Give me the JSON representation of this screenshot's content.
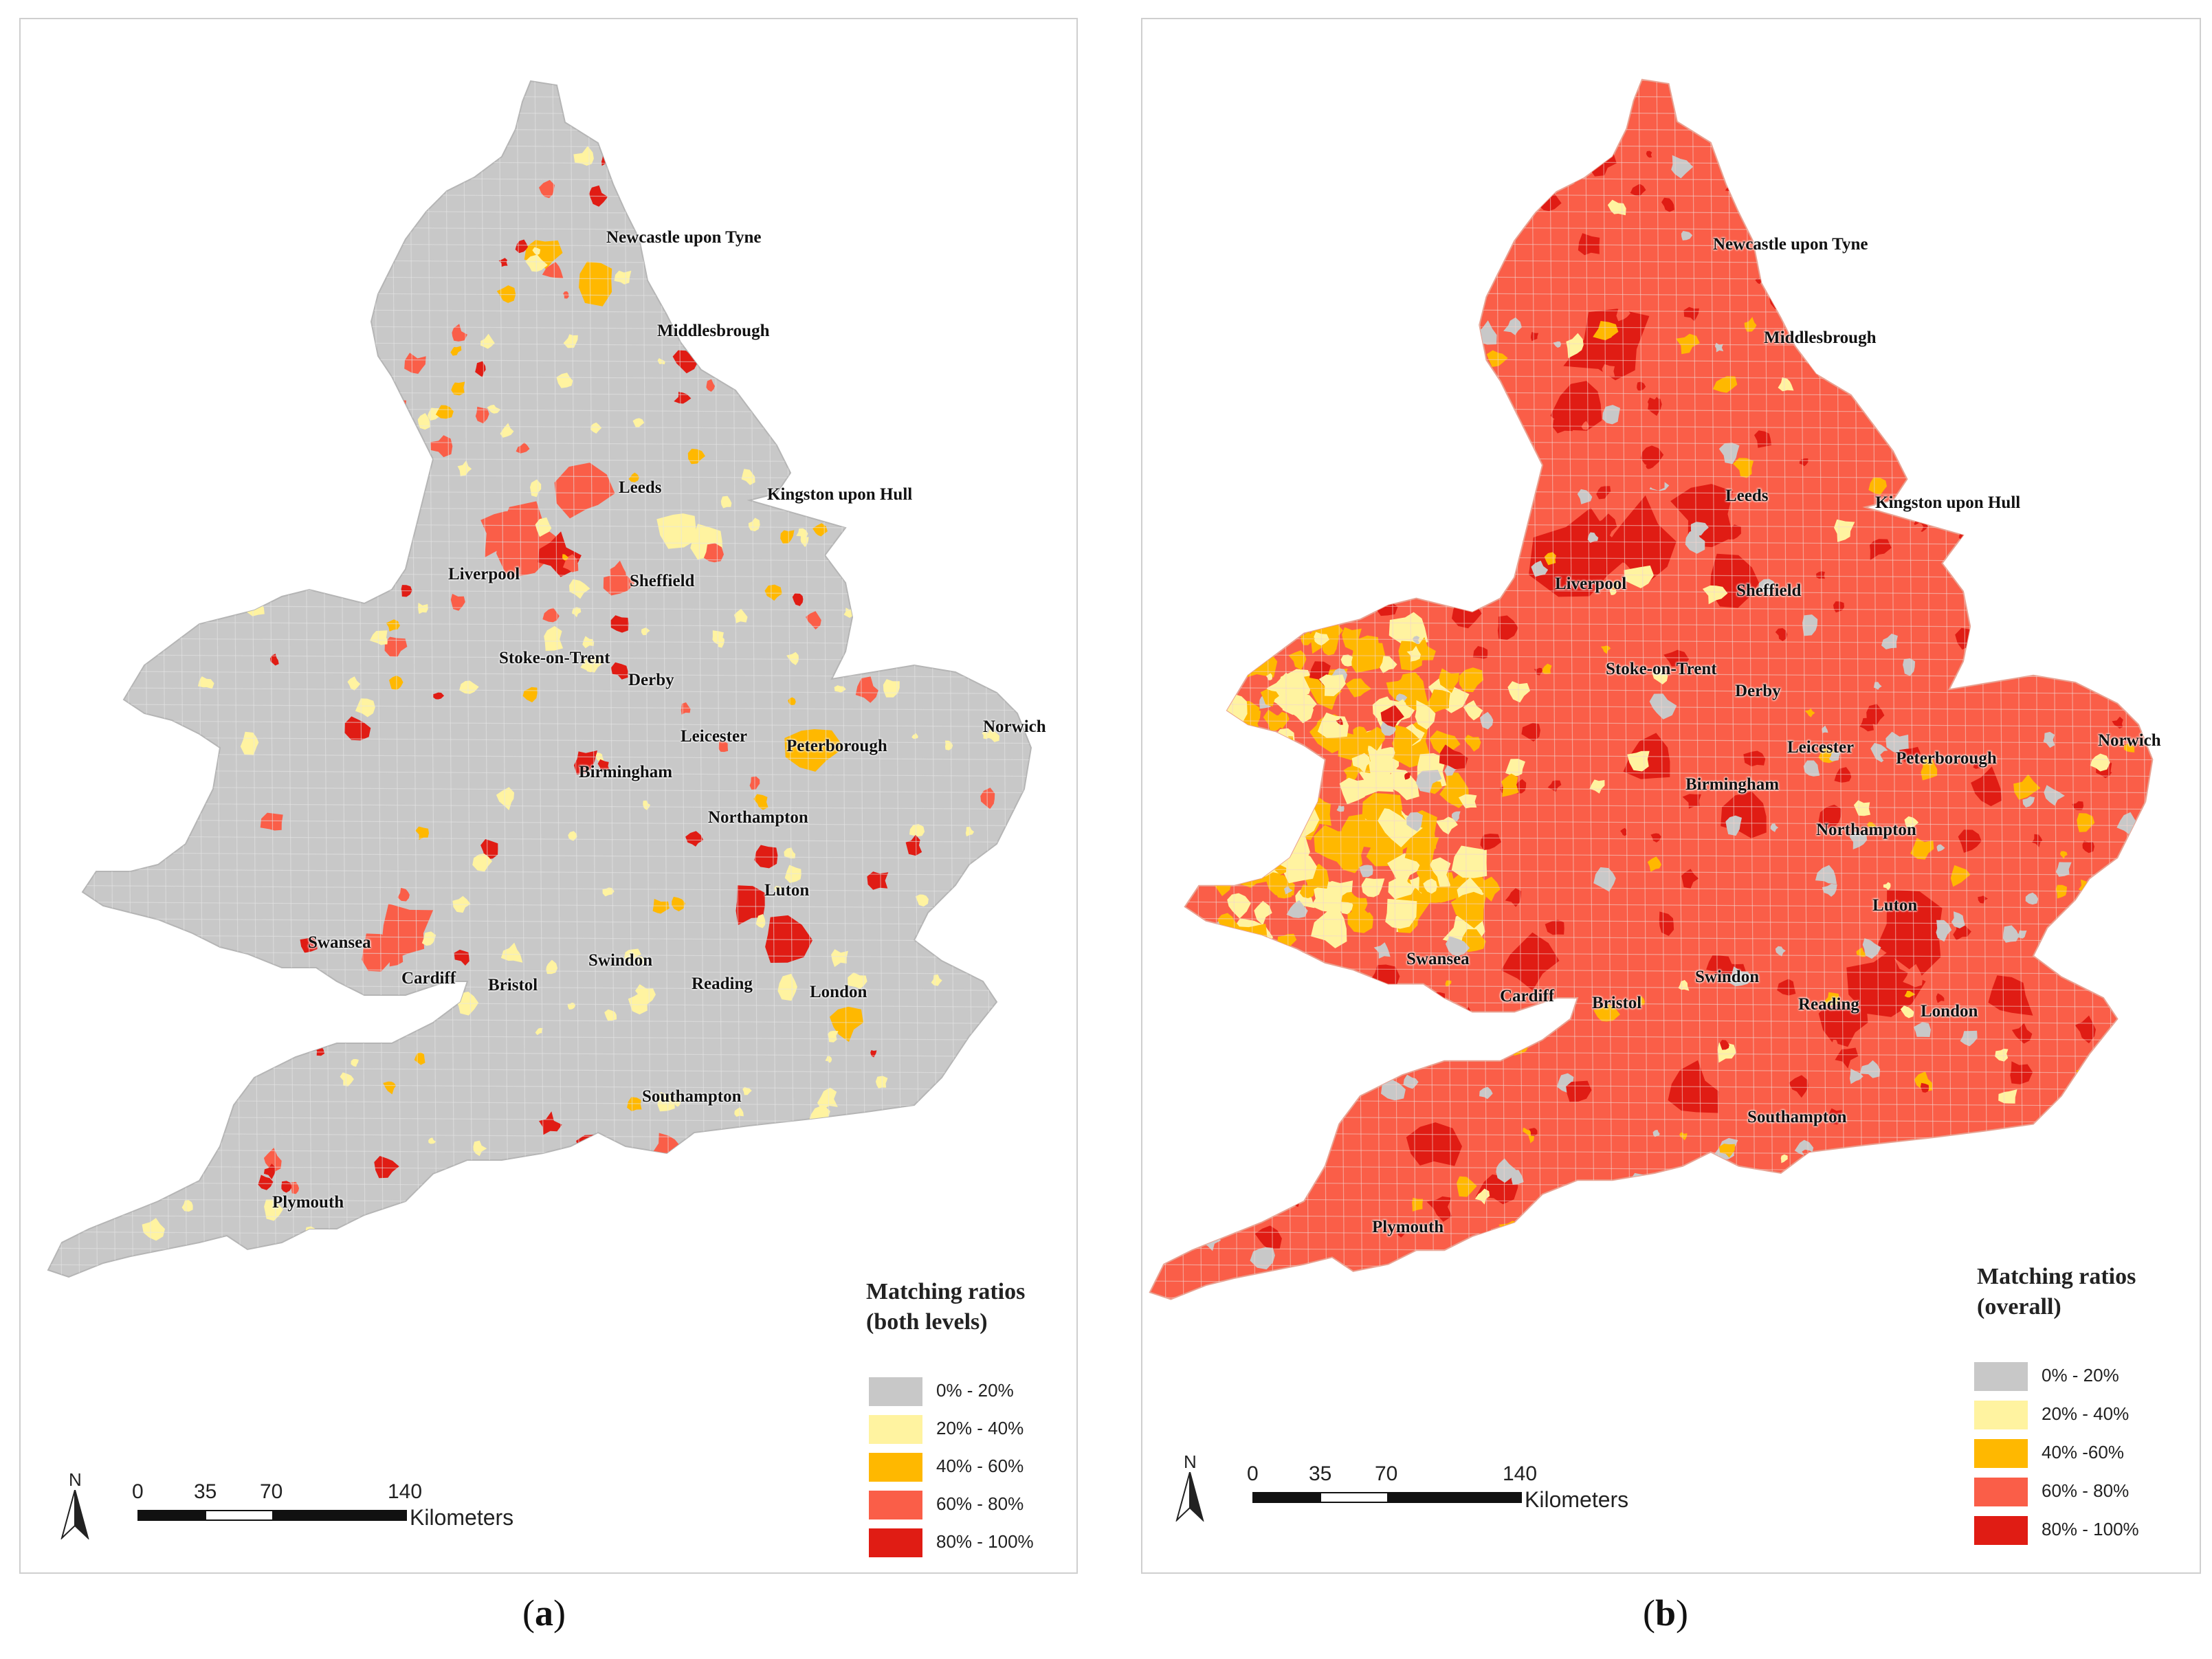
{
  "panels": [
    {
      "id": "a",
      "caption_open": "(",
      "caption_letter": "a",
      "caption_close": ")",
      "legend_title_line1": "Matching ratios",
      "legend_title_line2": "(both levels)",
      "legend": [
        {
          "label": "0% - 20%",
          "color": "#c8c8c8"
        },
        {
          "label": "20% - 40%",
          "color": "#fff3a0"
        },
        {
          "label": "40% - 60%",
          "color": "#ffb800"
        },
        {
          "label": "60% - 80%",
          "color": "#fa5e48"
        },
        {
          "label": "80% - 100%",
          "color": "#e01c14"
        }
      ],
      "scale_ticks": [
        "0",
        "35",
        "70",
        "140"
      ],
      "scale_unit": "Kilometers",
      "north_label": "N",
      "dominant_class": "0% - 20%",
      "cities": [
        {
          "name": "Newcastle upon Tyne"
        },
        {
          "name": "Middlesbrough"
        },
        {
          "name": "Leeds"
        },
        {
          "name": "Kingston upon Hull"
        },
        {
          "name": "Liverpool"
        },
        {
          "name": "Sheffield"
        },
        {
          "name": "Stoke-on-Trent"
        },
        {
          "name": "Derby"
        },
        {
          "name": "Leicester"
        },
        {
          "name": "Peterborough"
        },
        {
          "name": "Norwich"
        },
        {
          "name": "Birmingham"
        },
        {
          "name": "Northampton"
        },
        {
          "name": "Luton"
        },
        {
          "name": "Swansea"
        },
        {
          "name": "Cardiff"
        },
        {
          "name": "Bristol"
        },
        {
          "name": "Swindon"
        },
        {
          "name": "Reading"
        },
        {
          "name": "London"
        },
        {
          "name": "Southampton"
        },
        {
          "name": "Plymouth"
        }
      ]
    },
    {
      "id": "b",
      "caption_open": "(",
      "caption_letter": "b",
      "caption_close": ")",
      "legend_title_line1": "Matching ratios",
      "legend_title_line2": "(overall)",
      "legend": [
        {
          "label": "0% - 20%",
          "color": "#c8c8c8"
        },
        {
          "label": "20% - 40%",
          "color": "#fff3a0"
        },
        {
          "label": "40% -60%",
          "color": "#ffb800"
        },
        {
          "label": "60% - 80%",
          "color": "#fa5e48"
        },
        {
          "label": "80% - 100%",
          "color": "#e01c14"
        }
      ],
      "scale_ticks": [
        "0",
        "35",
        "70",
        "140"
      ],
      "scale_unit": "Kilometers",
      "north_label": "N",
      "dominant_class": "60% - 80%",
      "cities": [
        {
          "name": "Newcastle upon Tyne"
        },
        {
          "name": "Middlesbrough"
        },
        {
          "name": "Leeds"
        },
        {
          "name": "Kingston upon Hull"
        },
        {
          "name": "Liverpool"
        },
        {
          "name": "Sheffield"
        },
        {
          "name": "Stoke-on-Trent"
        },
        {
          "name": "Derby"
        },
        {
          "name": "Leicester"
        },
        {
          "name": "Peterborough"
        },
        {
          "name": "Norwich"
        },
        {
          "name": "Birmingham"
        },
        {
          "name": "Northampton"
        },
        {
          "name": "Luton"
        },
        {
          "name": "Swansea"
        },
        {
          "name": "Cardiff"
        },
        {
          "name": "Bristol"
        },
        {
          "name": "Swindon"
        },
        {
          "name": "Reading"
        },
        {
          "name": "London"
        },
        {
          "name": "Southampton"
        },
        {
          "name": "Plymouth"
        }
      ]
    }
  ]
}
